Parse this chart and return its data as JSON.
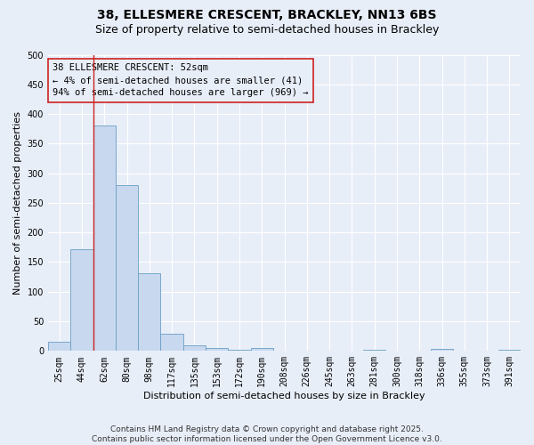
{
  "title_line1": "38, ELLESMERE CRESCENT, BRACKLEY, NN13 6BS",
  "title_line2": "Size of property relative to semi-detached houses in Brackley",
  "xlabel": "Distribution of semi-detached houses by size in Brackley",
  "ylabel": "Number of semi-detached properties",
  "categories": [
    "25sqm",
    "44sqm",
    "62sqm",
    "80sqm",
    "98sqm",
    "117sqm",
    "135sqm",
    "153sqm",
    "172sqm",
    "190sqm",
    "208sqm",
    "226sqm",
    "245sqm",
    "263sqm",
    "281sqm",
    "300sqm",
    "318sqm",
    "336sqm",
    "355sqm",
    "373sqm",
    "391sqm"
  ],
  "values": [
    16,
    172,
    381,
    280,
    131,
    29,
    9,
    5,
    2,
    5,
    1,
    0,
    0,
    0,
    2,
    0,
    0,
    3,
    0,
    0,
    2
  ],
  "bar_color": "#c8d8ee",
  "bar_edge_color": "#6a9fc8",
  "property_line_x": 1.5,
  "annotation_text_line1": "38 ELLESMERE CRESCENT: 52sqm",
  "annotation_text_line2": "← 4% of semi-detached houses are smaller (41)",
  "annotation_text_line3": "94% of semi-detached houses are larger (969) →",
  "vline_color": "#cc2222",
  "ylim": [
    0,
    500
  ],
  "yticks": [
    0,
    50,
    100,
    150,
    200,
    250,
    300,
    350,
    400,
    450,
    500
  ],
  "bg_color": "#e8eef8",
  "grid_color": "#ffffff",
  "footer_text": "Contains HM Land Registry data © Crown copyright and database right 2025.\nContains public sector information licensed under the Open Government Licence v3.0.",
  "title_fontsize": 10,
  "subtitle_fontsize": 9,
  "axis_label_fontsize": 8,
  "tick_fontsize": 7,
  "annotation_fontsize": 7.5,
  "footer_fontsize": 6.5
}
